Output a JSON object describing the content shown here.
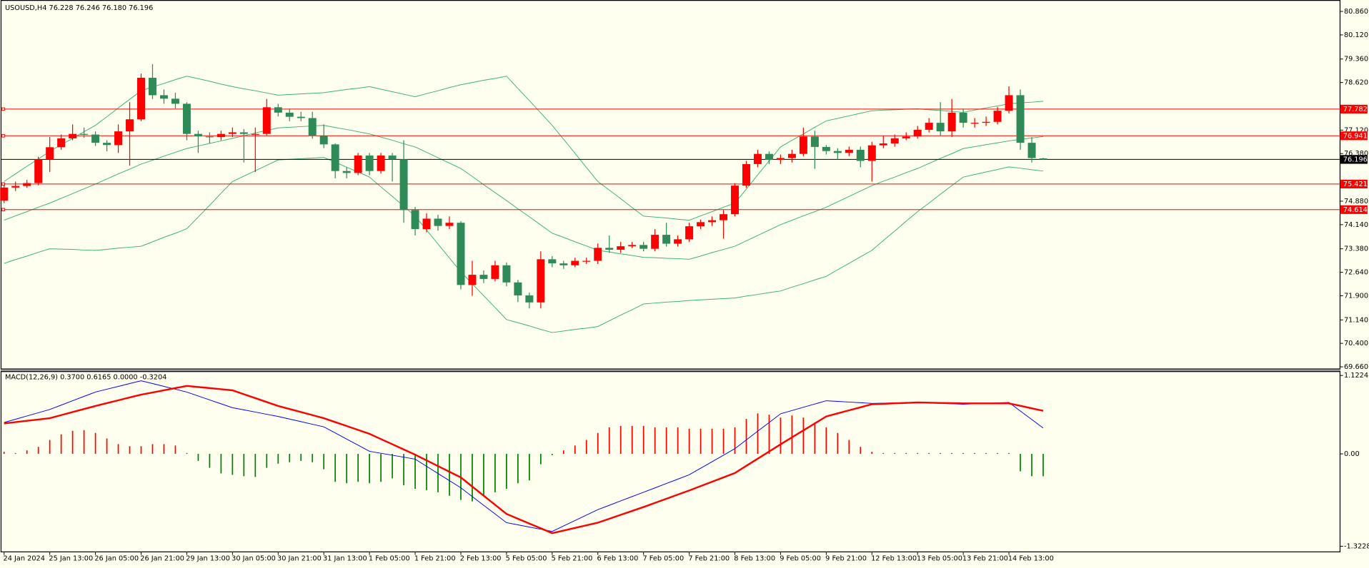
{
  "chart_data": [
    {
      "type": "candlestick",
      "title": "USOUSD,H4  76.228 76.246 76.180 76.196",
      "categories": [
        "24 Jan 2024",
        null,
        null,
        null,
        "25 Jan 13:00",
        null,
        null,
        null,
        "26 Jan 05:00",
        null,
        null,
        null,
        "26 Jan 21:00",
        null,
        null,
        null,
        "29 Jan 13:00",
        null,
        null,
        null,
        "30 Jan 05:00",
        null,
        null,
        null,
        "30 Jan 21:00",
        null,
        null,
        null,
        "31 Jan 13:00",
        null,
        null,
        null,
        "1 Feb 05:00",
        null,
        null,
        null,
        "1 Feb 21:00",
        null,
        null,
        null,
        "2 Feb 13:00",
        null,
        null,
        null,
        "5 Feb 05:00",
        null,
        null,
        null,
        "5 Feb 21:00",
        null,
        null,
        null,
        "6 Feb 13:00",
        null,
        null,
        null,
        "7 Feb 05:00",
        null,
        null,
        null,
        "7 Feb 21:00",
        null,
        null,
        null,
        "8 Feb 13:00",
        null,
        null,
        null,
        "9 Feb 05:00",
        null,
        null,
        null,
        "9 Feb 21:00",
        null,
        null,
        null,
        "12 Feb 13:00",
        null,
        null,
        null,
        "13 Feb 05:00",
        null,
        null,
        null,
        "13 Feb 21:00",
        null,
        null,
        null,
        "14 Feb 13:00",
        null,
        null,
        null
      ],
      "open": [
        74.9,
        75.31,
        75.36,
        75.45,
        76.2,
        76.58,
        76.86,
        77.0,
        76.98,
        76.72,
        76.65,
        77.08,
        77.46,
        78.77,
        78.22,
        78.11,
        77.95,
        77.0,
        76.92,
        76.9,
        77.0,
        77.05,
        77.0,
        77.0,
        77.84,
        77.67,
        77.54,
        77.5,
        76.94,
        76.67,
        75.83,
        75.77,
        76.32,
        75.83,
        76.32,
        76.2,
        74.6,
        74.0,
        74.33,
        74.1,
        74.2,
        72.24,
        72.56,
        72.43,
        72.86,
        72.32,
        71.91,
        71.69,
        73.05,
        72.92,
        72.86,
        73.0,
        73.0,
        73.41,
        73.35,
        73.46,
        73.5,
        73.38,
        73.82,
        73.54,
        73.68,
        74.09,
        74.22,
        74.28,
        74.47,
        75.37,
        76.05,
        76.37,
        76.18,
        76.24,
        76.37,
        76.92,
        76.59,
        76.46,
        76.4,
        76.5,
        76.15,
        76.64,
        76.7,
        76.86,
        76.92,
        77.13,
        77.35,
        77.08,
        77.67,
        77.35,
        77.35,
        77.38,
        77.73,
        78.22,
        76.72,
        76.228
      ],
      "high": [
        75.4,
        75.5,
        75.55,
        76.28,
        76.9,
        76.98,
        77.3,
        77.2,
        77.08,
        76.8,
        77.3,
        78.0,
        78.9,
        79.2,
        78.4,
        78.3,
        78.0,
        77.1,
        77.05,
        77.1,
        77.2,
        77.15,
        77.2,
        78.1,
        77.95,
        77.8,
        77.7,
        77.7,
        77.3,
        76.7,
        75.95,
        76.4,
        76.4,
        76.4,
        76.4,
        76.8,
        74.7,
        74.5,
        74.45,
        74.4,
        74.25,
        73.0,
        72.7,
        73.0,
        72.95,
        72.4,
        72.0,
        73.3,
        73.15,
        73.0,
        73.1,
        73.1,
        73.55,
        73.8,
        73.6,
        73.6,
        73.6,
        74.0,
        74.2,
        73.8,
        74.2,
        74.3,
        74.4,
        74.6,
        75.45,
        76.15,
        76.5,
        76.45,
        76.35,
        76.5,
        77.2,
        77.1,
        76.65,
        76.55,
        76.6,
        76.6,
        76.75,
        76.95,
        76.98,
        77.05,
        77.25,
        77.5,
        78.0,
        78.1,
        77.8,
        77.5,
        77.55,
        77.85,
        78.5,
        78.4,
        76.9,
        76.246
      ],
      "low": [
        74.82,
        75.2,
        75.3,
        75.38,
        75.8,
        76.5,
        76.8,
        76.88,
        76.62,
        76.45,
        76.4,
        76.0,
        77.4,
        78.1,
        77.95,
        77.8,
        76.8,
        76.4,
        76.7,
        76.8,
        76.9,
        76.1,
        75.8,
        76.95,
        77.55,
        77.4,
        77.4,
        76.85,
        76.55,
        75.6,
        75.6,
        75.7,
        75.7,
        75.75,
        75.5,
        74.2,
        73.8,
        73.9,
        73.95,
        74.0,
        72.1,
        71.9,
        72.3,
        72.35,
        72.2,
        71.7,
        71.5,
        71.5,
        72.8,
        72.75,
        72.8,
        72.9,
        72.9,
        73.25,
        73.25,
        73.4,
        73.3,
        73.3,
        73.45,
        73.45,
        73.6,
        74.0,
        74.1,
        73.7,
        74.4,
        75.3,
        75.95,
        76.05,
        76.05,
        76.1,
        76.3,
        75.9,
        76.35,
        76.2,
        76.3,
        75.95,
        75.5,
        76.55,
        76.6,
        76.8,
        76.85,
        77.05,
        76.95,
        76.9,
        77.2,
        77.2,
        77.25,
        77.3,
        77.65,
        76.5,
        76.1,
        76.18
      ],
      "close": [
        75.31,
        75.36,
        75.45,
        76.2,
        76.58,
        76.86,
        77.0,
        76.98,
        76.72,
        76.65,
        77.08,
        77.46,
        78.77,
        78.22,
        78.11,
        77.95,
        77.0,
        76.92,
        76.9,
        77.0,
        77.05,
        77.0,
        77.0,
        77.84,
        77.67,
        77.54,
        77.5,
        76.94,
        76.67,
        75.83,
        75.77,
        76.32,
        75.83,
        76.32,
        76.2,
        74.6,
        74.0,
        74.33,
        74.1,
        74.2,
        72.24,
        72.56,
        72.43,
        72.86,
        72.32,
        71.91,
        71.69,
        73.05,
        72.92,
        72.86,
        73.0,
        73.0,
        73.41,
        73.35,
        73.46,
        73.5,
        73.38,
        73.82,
        73.54,
        73.68,
        74.09,
        74.22,
        74.28,
        74.47,
        75.37,
        76.05,
        76.37,
        76.18,
        76.24,
        76.37,
        76.92,
        76.59,
        76.46,
        76.4,
        76.5,
        76.15,
        76.64,
        76.7,
        76.86,
        76.92,
        77.13,
        77.35,
        77.08,
        77.67,
        77.35,
        77.35,
        77.38,
        77.73,
        78.22,
        76.72,
        76.24,
        76.196
      ],
      "up_color": "#ff0000",
      "down_color": "#2e8b57",
      "bands": [
        {
          "color": "#3cb371",
          "values": [
            75.5,
            75.74,
            75.98,
            76.21,
            76.45,
            76.66,
            76.86,
            77.07,
            77.27,
            77.54,
            77.82,
            78.09,
            78.36,
            78.48,
            78.59,
            78.71,
            78.82,
            78.74,
            78.66,
            78.57,
            78.49,
            78.42,
            78.36,
            78.29,
            78.22,
            78.24,
            78.26,
            78.28,
            78.3,
            78.35,
            78.4,
            78.44,
            78.49,
            78.41,
            78.33,
            78.25,
            78.17,
            78.27,
            78.36,
            78.46,
            78.55,
            78.62,
            78.69,
            78.75,
            78.82,
            78.43,
            78.05,
            77.66,
            77.27,
            76.83,
            76.39,
            75.94,
            75.5,
            75.23,
            74.96,
            74.68,
            74.41,
            74.38,
            74.35,
            74.31,
            74.28,
            74.42,
            74.55,
            74.69,
            74.82,
            75.26,
            75.71,
            76.15,
            76.59,
            76.8,
            77.0,
            77.21,
            77.41,
            77.49,
            77.57,
            77.65,
            77.73,
            77.75,
            77.76,
            77.78,
            77.79,
            77.76,
            77.74,
            77.71,
            77.68,
            77.75,
            77.82,
            77.88,
            77.95,
            77.98,
            78.0,
            78.03
          ]
        },
        {
          "color": "#3cb371",
          "values": [
            74.28,
            74.42,
            74.55,
            74.69,
            74.82,
            74.97,
            75.12,
            75.27,
            75.42,
            75.58,
            75.74,
            75.89,
            76.05,
            76.17,
            76.3,
            76.42,
            76.54,
            76.62,
            76.7,
            76.78,
            76.86,
            76.94,
            77.03,
            77.11,
            77.19,
            77.21,
            77.23,
            77.25,
            77.27,
            77.2,
            77.14,
            77.07,
            77.0,
            76.9,
            76.8,
            76.69,
            76.59,
            76.42,
            76.25,
            76.08,
            75.91,
            75.66,
            75.4,
            75.15,
            74.9,
            74.64,
            74.39,
            74.13,
            73.87,
            73.74,
            73.6,
            73.47,
            73.33,
            73.28,
            73.22,
            73.17,
            73.11,
            73.1,
            73.08,
            73.07,
            73.05,
            73.15,
            73.26,
            73.36,
            73.46,
            73.63,
            73.8,
            73.97,
            74.14,
            74.28,
            74.42,
            74.55,
            74.69,
            74.86,
            75.03,
            75.2,
            75.37,
            75.51,
            75.64,
            75.78,
            75.91,
            76.07,
            76.23,
            76.38,
            76.54,
            76.6,
            76.66,
            76.72,
            76.78,
            76.83,
            76.87,
            76.92
          ]
        },
        {
          "color": "#3cb371",
          "values": [
            72.92,
            73.04,
            73.15,
            73.27,
            73.38,
            73.37,
            73.36,
            73.34,
            73.33,
            73.36,
            73.4,
            73.43,
            73.46,
            73.6,
            73.74,
            73.87,
            74.01,
            74.38,
            74.75,
            75.13,
            75.5,
            75.67,
            75.84,
            76.01,
            76.18,
            76.2,
            76.22,
            76.24,
            76.26,
            76.11,
            75.95,
            75.8,
            75.64,
            75.33,
            75.03,
            74.72,
            74.41,
            73.97,
            73.53,
            73.09,
            72.65,
            72.28,
            71.9,
            71.53,
            71.15,
            71.05,
            70.95,
            70.84,
            70.74,
            70.79,
            70.84,
            70.88,
            70.93,
            71.11,
            71.29,
            71.46,
            71.64,
            71.67,
            71.7,
            71.72,
            71.75,
            71.77,
            71.79,
            71.81,
            71.83,
            71.89,
            71.94,
            72.0,
            72.05,
            72.17,
            72.28,
            72.4,
            72.51,
            72.72,
            72.92,
            73.13,
            73.33,
            73.64,
            73.94,
            74.25,
            74.55,
            74.82,
            75.1,
            75.37,
            75.64,
            75.72,
            75.8,
            75.88,
            75.96,
            75.92,
            75.87,
            75.83
          ]
        }
      ],
      "levels": [
        77.782,
        76.941,
        75.421,
        74.614
      ],
      "level_color": "#ff0000",
      "last_price": 76.196,
      "last_color": "#000000",
      "ylim": [
        69.58,
        81.22
      ],
      "yticks": [
        {
          "value": 80.86,
          "label": "80.860"
        },
        {
          "value": 80.12,
          "label": "80.120"
        },
        {
          "value": 79.36,
          "label": "79.360"
        },
        {
          "value": 78.62,
          "label": "78.620"
        },
        {
          "value": 77.12,
          "label": "77.120"
        },
        {
          "value": 76.38,
          "label": "76.380"
        },
        {
          "value": 74.88,
          "label": "74.880"
        },
        {
          "value": 74.14,
          "label": "74.140"
        },
        {
          "value": 73.38,
          "label": "73.380"
        },
        {
          "value": 72.64,
          "label": "72.640"
        },
        {
          "value": 71.9,
          "label": "71.900"
        },
        {
          "value": 71.14,
          "label": "71.140"
        },
        {
          "value": 70.4,
          "label": "70.400"
        },
        {
          "value": 69.66,
          "label": "69.660"
        }
      ]
    },
    {
      "type": "macd",
      "title": "MACD(12,26,9) 0.3700 0.6165 0.0000 -0.3204",
      "histogram": [
        0.03,
        0.0,
        0.05,
        0.1,
        0.2,
        0.28,
        0.33,
        0.34,
        0.3,
        0.22,
        0.14,
        0.11,
        0.11,
        0.14,
        0.14,
        0.12,
        0.01,
        -0.1,
        -0.2,
        -0.28,
        -0.3,
        -0.32,
        -0.33,
        -0.2,
        -0.14,
        -0.12,
        -0.1,
        -0.12,
        -0.22,
        -0.4,
        -0.42,
        -0.4,
        -0.42,
        -0.4,
        -0.35,
        -0.45,
        -0.5,
        -0.52,
        -0.55,
        -0.6,
        -0.66,
        -0.68,
        -0.6,
        -0.55,
        -0.5,
        -0.42,
        -0.38,
        -0.15,
        -0.02,
        0.05,
        0.12,
        0.2,
        0.3,
        0.38,
        0.4,
        0.4,
        0.4,
        0.38,
        0.38,
        0.38,
        0.36,
        0.36,
        0.36,
        0.36,
        0.38,
        0.5,
        0.58,
        0.56,
        0.52,
        0.55,
        0.52,
        0.45,
        0.38,
        0.3,
        0.2,
        0.1,
        0.03,
        0.0,
        -0.01,
        -0.01,
        -0.01,
        0.0,
        -0.01,
        0.01,
        0.01,
        -0.01,
        -0.01,
        -0.01,
        0.01,
        -0.25,
        -0.32,
        -0.3204
      ],
      "hist_up_color": "#ff0000",
      "hist_down_color": "#008000",
      "series": [
        {
          "color": "#0000ff",
          "values": [
            0.449,
            0.496,
            0.543,
            0.589,
            0.636,
            0.698,
            0.761,
            0.823,
            0.885,
            0.926,
            0.966,
            1.007,
            1.047,
            1.007,
            0.966,
            0.926,
            0.885,
            0.829,
            0.773,
            0.717,
            0.661,
            0.63,
            0.599,
            0.567,
            0.536,
            0.499,
            0.462,
            0.424,
            0.387,
            0.3,
            0.212,
            0.125,
            0.037,
            0.009,
            -0.019,
            -0.047,
            -0.075,
            -0.178,
            -0.281,
            -0.383,
            -0.486,
            -0.611,
            -0.736,
            -0.86,
            -0.985,
            -1.016,
            -1.048,
            -1.079,
            -1.11,
            -1.032,
            -0.954,
            -0.876,
            -0.798,
            -0.736,
            -0.673,
            -0.611,
            -0.549,
            -0.487,
            -0.424,
            -0.362,
            -0.299,
            -0.206,
            -0.112,
            -0.019,
            0.075,
            0.2,
            0.325,
            0.449,
            0.574,
            0.621,
            0.668,
            0.714,
            0.761,
            0.752,
            0.742,
            0.733,
            0.723,
            0.726,
            0.73,
            0.733,
            0.736,
            0.73,
            0.724,
            0.717,
            0.711,
            0.717,
            0.724,
            0.73,
            0.736,
            0.614,
            0.492,
            0.37
          ]
        },
        {
          "color": "#ff0000",
          "values": [
            0.436,
            0.455,
            0.474,
            0.492,
            0.511,
            0.555,
            0.599,
            0.642,
            0.686,
            0.727,
            0.767,
            0.808,
            0.848,
            0.879,
            0.911,
            0.942,
            0.973,
            0.957,
            0.942,
            0.926,
            0.91,
            0.854,
            0.798,
            0.742,
            0.686,
            0.642,
            0.599,
            0.555,
            0.511,
            0.455,
            0.399,
            0.343,
            0.287,
            0.212,
            0.138,
            0.063,
            -0.012,
            -0.093,
            -0.175,
            -0.256,
            -0.337,
            -0.468,
            -0.599,
            -0.729,
            -0.86,
            -0.929,
            -0.998,
            -1.066,
            -1.135,
            -1.098,
            -1.06,
            -1.023,
            -0.985,
            -0.929,
            -0.873,
            -0.817,
            -0.761,
            -0.702,
            -0.643,
            -0.583,
            -0.524,
            -0.462,
            -0.399,
            -0.337,
            -0.274,
            -0.171,
            -0.069,
            0.034,
            0.137,
            0.237,
            0.336,
            0.436,
            0.536,
            0.58,
            0.624,
            0.667,
            0.711,
            0.717,
            0.724,
            0.73,
            0.736,
            0.733,
            0.729,
            0.726,
            0.723,
            0.723,
            0.723,
            0.723,
            0.723,
            0.688,
            0.652,
            0.6165
          ]
        }
      ],
      "ylim": [
        -1.397,
        1.185
      ],
      "yticks": [
        1.1224,
        {
          "value": 0,
          "label": "0.00"
        },
        -1.3228
      ]
    }
  ]
}
